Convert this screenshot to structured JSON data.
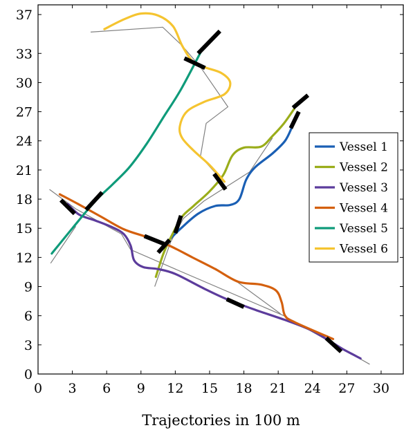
{
  "chart_data": {
    "type": "line",
    "title": "",
    "xlabel": "Trajectories in 100 m",
    "ylabel": "",
    "xlim": [
      0,
      32
    ],
    "ylim": [
      0,
      38
    ],
    "xticks": [
      0,
      3,
      6,
      9,
      12,
      15,
      18,
      21,
      24,
      27,
      30
    ],
    "yticks": [
      0,
      3,
      6,
      9,
      12,
      15,
      18,
      21,
      24,
      27,
      30,
      33,
      37
    ],
    "grid": false,
    "legend_position": "right",
    "series": [
      {
        "name": "Vessel 1",
        "color": "#1a5fb4",
        "points": [
          [
            11.3,
            13.6
          ],
          [
            12.5,
            15.0
          ],
          [
            14,
            16.5
          ],
          [
            15.5,
            17.3
          ],
          [
            16.8,
            17.4
          ],
          [
            17.6,
            18.0
          ],
          [
            18.2,
            20.0
          ],
          [
            19.0,
            21.3
          ],
          [
            20.5,
            22.7
          ],
          [
            21.6,
            24.0
          ],
          [
            22.2,
            25.4
          ]
        ]
      },
      {
        "name": "Vessel 2",
        "color": "#9aad1a",
        "points": [
          [
            10.3,
            10.0
          ],
          [
            11.0,
            12.5
          ],
          [
            11.8,
            14.5
          ],
          [
            12.6,
            16.2
          ],
          [
            13.6,
            17.3
          ],
          [
            15.0,
            18.8
          ],
          [
            16.2,
            20.5
          ],
          [
            17.0,
            22.5
          ],
          [
            18.0,
            23.3
          ],
          [
            19.5,
            23.4
          ],
          [
            20.5,
            24.5
          ],
          [
            21.5,
            25.8
          ],
          [
            22.4,
            27.3
          ]
        ]
      },
      {
        "name": "Vessel 3",
        "color": "#5c3c9c",
        "points": [
          [
            2.6,
            17.5
          ],
          [
            3.6,
            16.4
          ],
          [
            5.0,
            15.8
          ],
          [
            6.5,
            15.1
          ],
          [
            7.5,
            14.4
          ],
          [
            8.1,
            13.2
          ],
          [
            8.4,
            11.7
          ],
          [
            9.2,
            11.0
          ],
          [
            10.5,
            10.8
          ],
          [
            12.0,
            10.3
          ],
          [
            14.5,
            8.8
          ],
          [
            16.5,
            7.7
          ],
          [
            19.0,
            6.6
          ],
          [
            21.5,
            5.6
          ],
          [
            23.7,
            4.6
          ],
          [
            25.5,
            3.4
          ],
          [
            26.6,
            2.6
          ],
          [
            28.2,
            1.6
          ]
        ]
      },
      {
        "name": "Vessel 4",
        "color": "#d4600e",
        "points": [
          [
            1.9,
            18.5
          ],
          [
            3.5,
            17.5
          ],
          [
            5.5,
            16.2
          ],
          [
            7.5,
            14.9
          ],
          [
            9.5,
            14.1
          ],
          [
            11.5,
            13.2
          ],
          [
            13.5,
            12.0
          ],
          [
            15.5,
            10.8
          ],
          [
            17.5,
            9.5
          ],
          [
            19.5,
            9.2
          ],
          [
            20.8,
            8.6
          ],
          [
            21.3,
            7.4
          ],
          [
            21.6,
            6.0
          ],
          [
            22.5,
            5.3
          ],
          [
            25.8,
            3.6
          ]
        ]
      },
      {
        "name": "Vessel 5",
        "color": "#0f9b7a",
        "points": [
          [
            1.2,
            12.4
          ],
          [
            3.0,
            15.0
          ],
          [
            5.0,
            17.8
          ],
          [
            6.5,
            19.5
          ],
          [
            8.0,
            21.3
          ],
          [
            9.5,
            23.7
          ],
          [
            11.0,
            26.5
          ],
          [
            12.5,
            29.3
          ],
          [
            14.3,
            33.3
          ]
        ]
      },
      {
        "name": "Vessel 6",
        "color": "#f5c430",
        "points": [
          [
            5.8,
            35.5
          ],
          [
            7.5,
            36.5
          ],
          [
            9.0,
            37.1
          ],
          [
            10.5,
            36.9
          ],
          [
            11.8,
            35.8
          ],
          [
            12.6,
            33.8
          ],
          [
            13.5,
            32.2
          ],
          [
            14.5,
            31.6
          ],
          [
            16.0,
            31.0
          ],
          [
            16.8,
            30.0
          ],
          [
            16.3,
            28.8
          ],
          [
            14.5,
            28.0
          ],
          [
            13.0,
            27.0
          ],
          [
            12.4,
            25.5
          ],
          [
            12.6,
            24.3
          ],
          [
            13.6,
            23.0
          ],
          [
            15.0,
            21.5
          ],
          [
            16.3,
            19.8
          ]
        ]
      }
    ],
    "reference_paths": [
      [
        [
          4.6,
          35.2
        ],
        [
          10.9,
          35.7
        ],
        [
          12.6,
          33.8
        ],
        [
          14.2,
          31.6
        ],
        [
          16.6,
          27.5
        ],
        [
          14.7,
          25.8
        ],
        [
          14.2,
          22.4
        ],
        [
          16.2,
          19.8
        ]
      ],
      [
        [
          1.0,
          19.0
        ],
        [
          3.3,
          17.0
        ],
        [
          7.3,
          14.4
        ],
        [
          8.1,
          12.8
        ],
        [
          12.0,
          10.8
        ],
        [
          21.5,
          6.0
        ],
        [
          29.0,
          1.0
        ]
      ],
      [
        [
          1.1,
          11.4
        ],
        [
          3.3,
          15.2
        ]
      ],
      [
        [
          10.2,
          9.0
        ],
        [
          11.6,
          13.6
        ],
        [
          12.7,
          16.0
        ],
        [
          14.5,
          17.8
        ],
        [
          18.5,
          20.8
        ],
        [
          20.5,
          24.3
        ]
      ],
      [
        [
          15.5,
          10.9
        ],
        [
          17.5,
          9.4
        ],
        [
          21.2,
          6.2
        ]
      ]
    ],
    "markers": [
      [
        [
          10.5,
          12.5
        ],
        [
          11.5,
          13.8
        ]
      ],
      [
        [
          12.0,
          14.5
        ],
        [
          12.5,
          16.3
        ]
      ],
      [
        [
          22.1,
          25.3
        ],
        [
          22.8,
          27.0
        ]
      ],
      [
        [
          22.3,
          27.4
        ],
        [
          23.6,
          28.7
        ]
      ],
      [
        [
          2.0,
          17.9
        ],
        [
          3.2,
          16.5
        ]
      ],
      [
        [
          9.3,
          14.2
        ],
        [
          11.0,
          13.4
        ]
      ],
      [
        [
          16.5,
          7.7
        ],
        [
          18.0,
          6.9
        ]
      ],
      [
        [
          25.2,
          3.7
        ],
        [
          26.5,
          2.3
        ]
      ],
      [
        [
          4.2,
          16.9
        ],
        [
          5.6,
          18.7
        ]
      ],
      [
        [
          14.0,
          33.0
        ],
        [
          15.9,
          35.3
        ]
      ],
      [
        [
          12.8,
          32.5
        ],
        [
          14.6,
          31.5
        ]
      ],
      [
        [
          15.4,
          20.6
        ],
        [
          16.4,
          19.0
        ]
      ]
    ]
  }
}
